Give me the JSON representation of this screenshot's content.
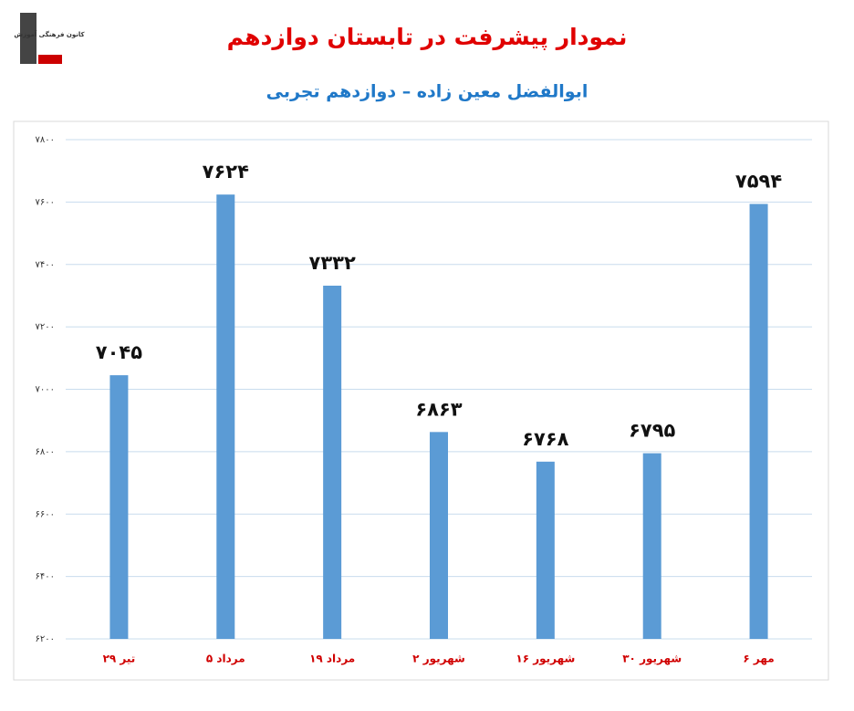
{
  "logo": "کانون فرهنگی آموزش",
  "chart_data": {
    "type": "bar",
    "title": "نمودار پیشرفت در تابستان دوازدهم",
    "subtitle": "ابوالفضل معین زاده – دوازدهم تجربی",
    "categories": [
      "۲۹ تیر",
      "۵ مرداد",
      "۱۹ مرداد",
      "۲ شهریور",
      "۱۶ شهریور",
      "۳۰ شهریور",
      "۶ مهر"
    ],
    "values": [
      7045,
      7624,
      7332,
      6863,
      6768,
      6795,
      7594
    ],
    "value_labels": [
      "۷۰۴۵",
      "۷۶۲۴",
      "۷۳۳۲",
      "۶۸۶۳",
      "۶۷۶۸",
      "۶۷۹۵",
      "۷۵۹۴"
    ],
    "color": "#5b9bd5",
    "ylim": [
      6200,
      7800
    ],
    "yticks": [
      {
        "value": 6200,
        "label": "۶۲۰۰"
      },
      {
        "value": 6400,
        "label": "۶۴۰۰"
      },
      {
        "value": 6600,
        "label": "۶۶۰۰"
      },
      {
        "value": 6800,
        "label": "۶۸۰۰"
      },
      {
        "value": 7000,
        "label": "۷۰۰۰"
      },
      {
        "value": 7200,
        "label": "۷۲۰۰"
      },
      {
        "value": 7400,
        "label": "۷۴۰۰"
      },
      {
        "value": 7600,
        "label": "۷۶۰۰"
      },
      {
        "value": 7800,
        "label": "۷۸۰۰"
      }
    ],
    "grid": true
  }
}
